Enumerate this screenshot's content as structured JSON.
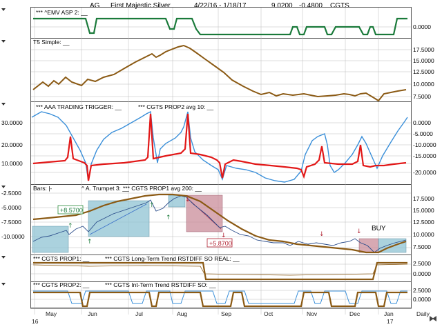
{
  "header": {
    "symbol": "AG",
    "company": "First Majestic Silver",
    "date_range": "4/22/16 - 1/18/17",
    "price": "9.0200",
    "change": "-0.4800",
    "indicator": "CGTS"
  },
  "panels": {
    "emv": {
      "title": "*** ^EMV ASP 2: __",
      "ticks": [
        "0.0000"
      ]
    },
    "t5": {
      "title": "T5 Simple: __",
      "ticks": [
        "17.5000",
        "15.0000",
        "12.5000",
        "10.0000",
        "7.5000"
      ]
    },
    "aaa": {
      "title": "*** AAA TRADING TRIGGER: __",
      "title2": "*** CGTS PROP2 avg 10: __",
      "left_ticks": [
        "30.0000",
        "20.0000",
        "10.0000"
      ],
      "right_ticks": [
        "0.0000",
        "-5.0000",
        "-10.0000",
        "-15.0000",
        "-20.0000"
      ]
    },
    "price": {
      "title_bars": "Bars: |-",
      "title_trumpet": "^ A. Trumpet 3: __",
      "title_prop1avg": "*** CGTS PROP1 avg 200: __",
      "left_ticks": [
        "-2.5000",
        "-5.0000",
        "-7.5000",
        "-10.0000"
      ],
      "right_ticks": [
        "17.5000",
        "15.0000",
        "12.5000",
        "10.0000",
        "7.5000"
      ],
      "annotations": {
        "gain": "+8.5700",
        "loss": "+5.8700",
        "buy": "BUY"
      }
    },
    "prop1": {
      "title": "*** CGTS PROP1: __",
      "title2": "*** CGTS Long-Term Trend RSTDIFF SO REAL: __",
      "ticks": [
        "2.5000",
        "0.0000"
      ]
    },
    "prop2": {
      "title": "*** CGTS PROP2: __",
      "title2": "*** CGTS Int-Term Trend RSTDIFF SO: __",
      "ticks": [
        "2.5000",
        "0.0000"
      ]
    }
  },
  "axis": {
    "months": [
      "May",
      "Jun",
      "Jul",
      "Aug",
      "Sep",
      "Oct",
      "Nov",
      "Dec",
      "Jan"
    ],
    "year_start": "16",
    "year_end": "17",
    "interval": "Daily"
  },
  "colors": {
    "green": "#1a7a3a",
    "brown": "#8b5a14",
    "red": "#e21818",
    "blue": "#3a8fd9",
    "teal_box": "#8fc3d3",
    "pink_box": "#c98c9a"
  }
}
